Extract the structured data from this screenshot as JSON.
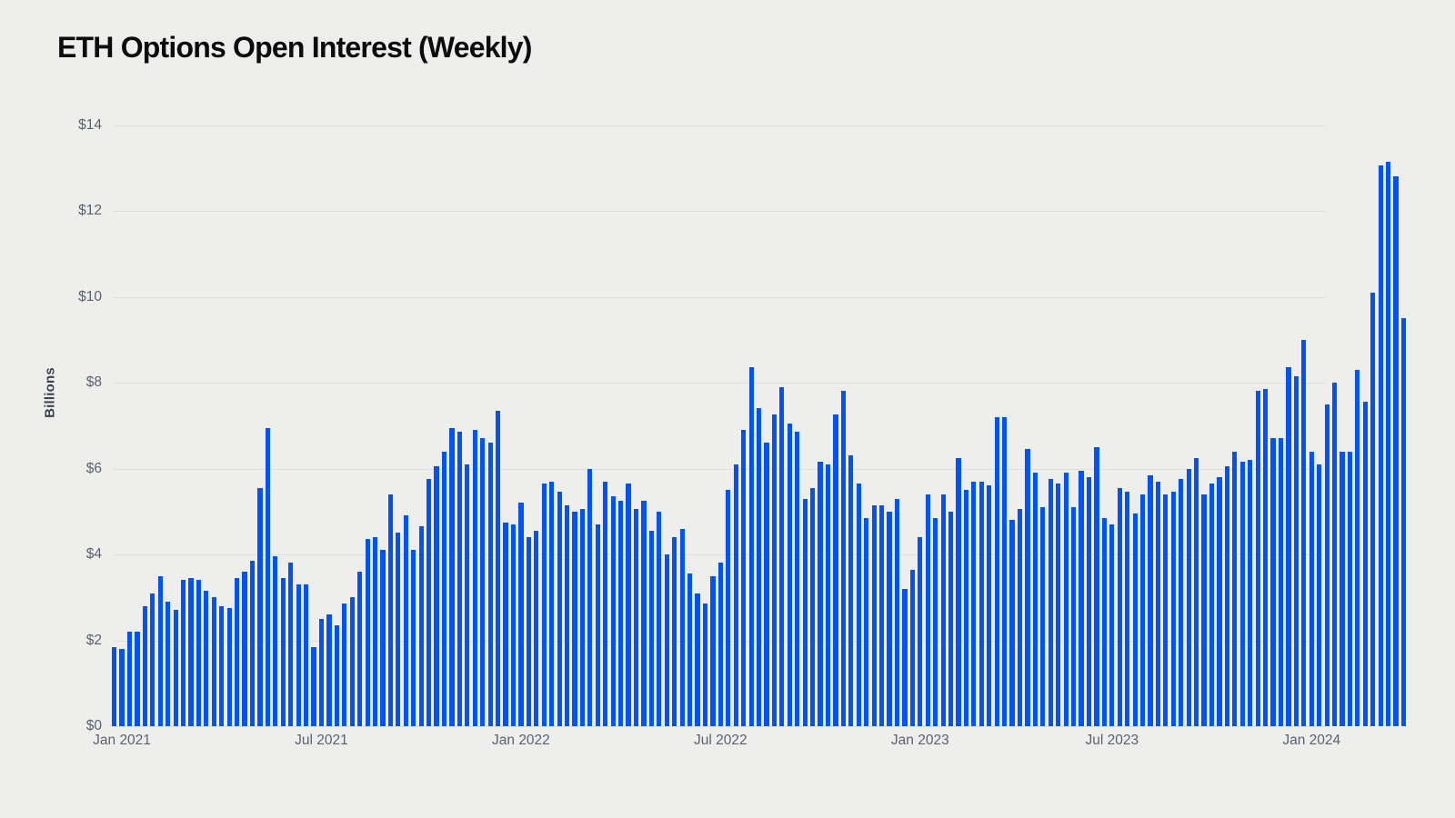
{
  "page": {
    "background_color": "#eeeeec"
  },
  "chart_data": {
    "type": "bar",
    "title": "ETH Options Open Interest (Weekly)",
    "ylabel": "Billions",
    "xlabel": "",
    "bar_color": "#0052ff",
    "grid": true,
    "legend": "none",
    "ylim": [
      0,
      14
    ],
    "y_tick_step": 2,
    "y_ticks": [
      "$0",
      "$2",
      "$4",
      "$6",
      "$8",
      "$10",
      "$12",
      "$14"
    ],
    "x_ticks": [
      {
        "label": "Jan 2021",
        "index": 1
      },
      {
        "label": "Jul 2021",
        "index": 27
      },
      {
        "label": "Jan 2022",
        "index": 53
      },
      {
        "label": "Jul 2022",
        "index": 79
      },
      {
        "label": "Jan 2023",
        "index": 105
      },
      {
        "label": "Jul 2023",
        "index": 130
      },
      {
        "label": "Jan 2024",
        "index": 156
      }
    ],
    "unit": "USD billions",
    "values": [
      1.85,
      1.8,
      2.2,
      2.2,
      2.8,
      3.1,
      3.5,
      2.9,
      2.7,
      3.4,
      3.45,
      3.4,
      3.15,
      3.0,
      2.8,
      2.75,
      3.45,
      3.6,
      3.85,
      5.55,
      6.95,
      3.95,
      3.45,
      3.8,
      3.3,
      3.3,
      1.85,
      2.5,
      2.6,
      2.35,
      2.85,
      3.0,
      3.6,
      4.35,
      4.4,
      4.1,
      5.4,
      4.5,
      4.9,
      4.1,
      4.65,
      5.75,
      6.05,
      6.4,
      6.95,
      6.85,
      6.1,
      6.9,
      6.7,
      6.6,
      7.35,
      4.75,
      4.7,
      5.2,
      4.4,
      4.55,
      5.65,
      5.7,
      5.45,
      5.15,
      5.0,
      5.05,
      6.0,
      4.7,
      5.7,
      5.35,
      5.25,
      5.65,
      5.05,
      5.25,
      4.55,
      5.0,
      4.0,
      4.4,
      4.6,
      3.55,
      3.1,
      2.85,
      3.5,
      3.8,
      5.5,
      6.1,
      6.9,
      8.35,
      7.4,
      6.6,
      7.25,
      7.9,
      7.05,
      6.85,
      5.3,
      5.55,
      6.15,
      6.1,
      7.25,
      7.8,
      6.3,
      5.65,
      4.85,
      5.15,
      5.15,
      5.0,
      5.3,
      3.2,
      3.65,
      4.4,
      5.4,
      4.85,
      5.4,
      5.0,
      6.25,
      5.5,
      5.7,
      5.7,
      5.6,
      7.2,
      7.2,
      4.8,
      5.05,
      6.45,
      5.9,
      5.1,
      5.75,
      5.65,
      5.9,
      5.1,
      5.95,
      5.8,
      6.5,
      4.85,
      4.7,
      5.55,
      5.45,
      4.95,
      5.4,
      5.85,
      5.7,
      5.4,
      5.45,
      5.75,
      6.0,
      6.25,
      5.4,
      5.65,
      5.8,
      6.05,
      6.4,
      6.15,
      6.2,
      7.8,
      7.85,
      6.7,
      6.7,
      8.35,
      8.15,
      9.0,
      6.4,
      6.1,
      7.5,
      8.0,
      6.4,
      6.4,
      8.3,
      7.55,
      10.1,
      13.05,
      13.15,
      12.8,
      9.5
    ]
  }
}
